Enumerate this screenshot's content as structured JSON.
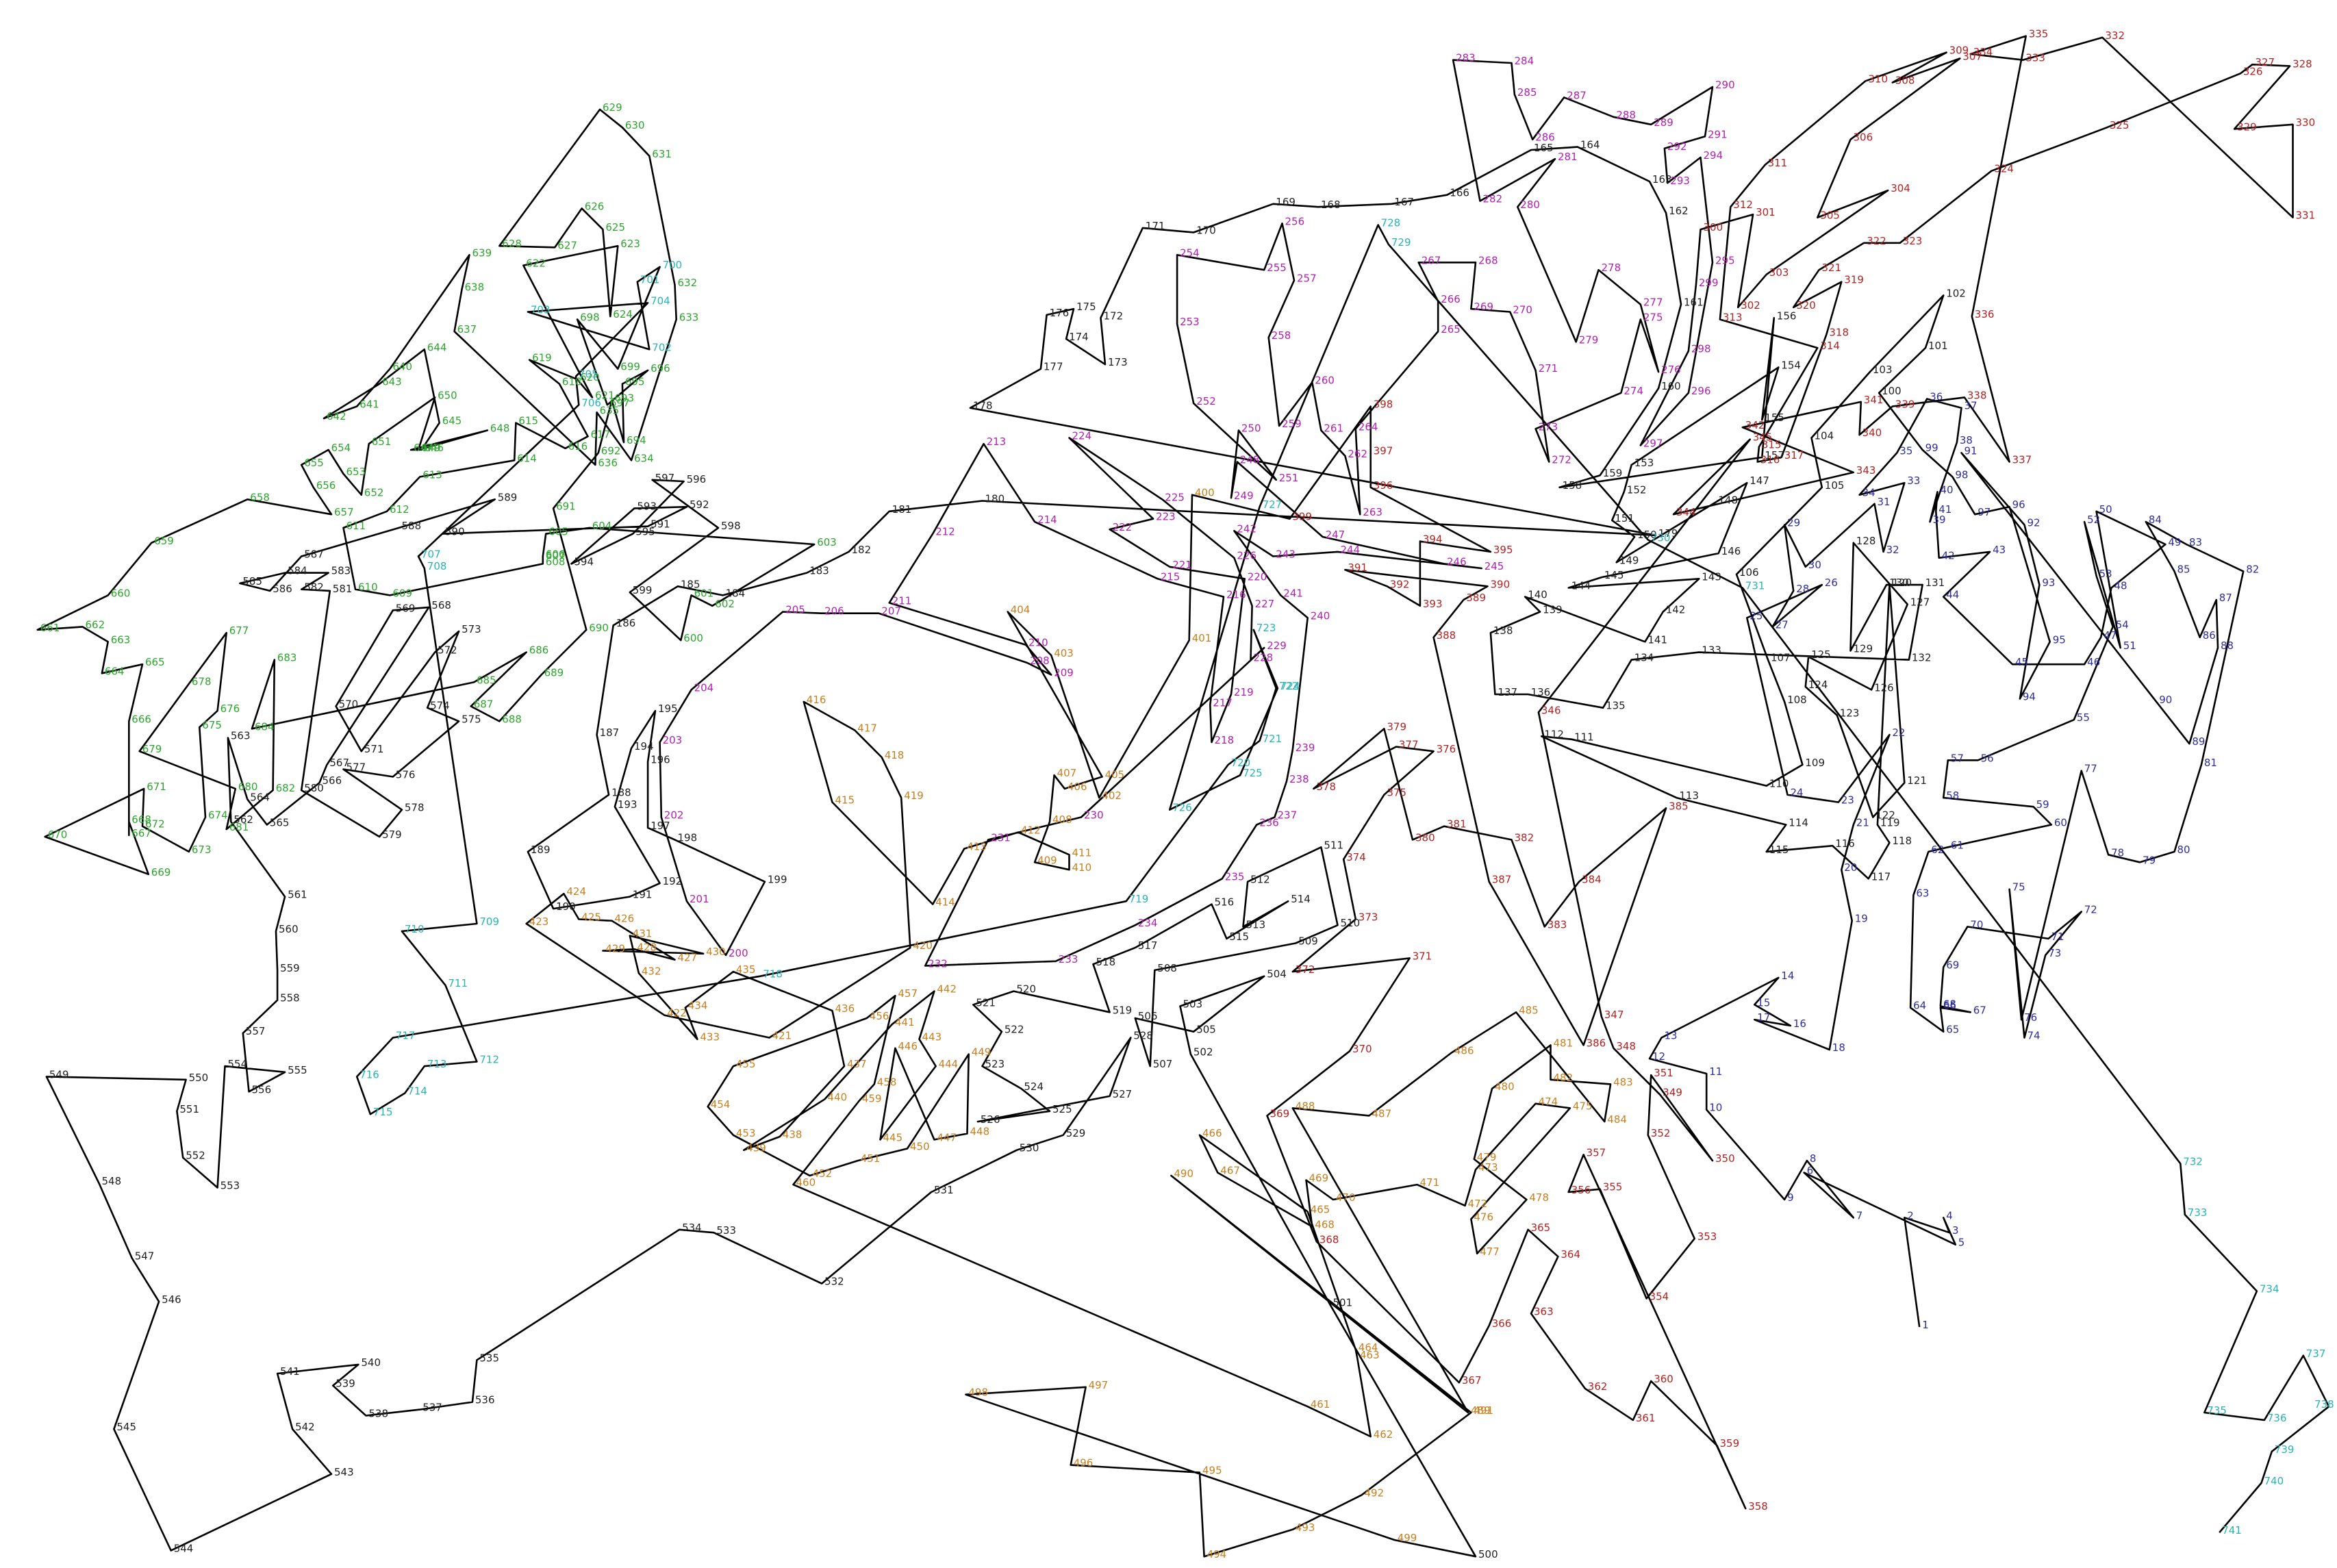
{
  "puzzle": {
    "kind": "connect-the-dots",
    "total_points": 741,
    "color_bands": [
      {
        "from": 1,
        "to": 99,
        "color": "#2e2e9e"
      },
      {
        "from": 100,
        "to": 199,
        "color": "#222222"
      },
      {
        "from": 200,
        "to": 299,
        "color": "#b21fb2"
      },
      {
        "from": 300,
        "to": 399,
        "color": "#b52222"
      },
      {
        "from": 400,
        "to": 499,
        "color": "#c87f1e"
      },
      {
        "from": 500,
        "to": 599,
        "color": "#222222"
      },
      {
        "from": 600,
        "to": 699,
        "color": "#2ca62c"
      },
      {
        "from": 700,
        "to": 741,
        "color": "#27b4b4"
      }
    ]
  }
}
